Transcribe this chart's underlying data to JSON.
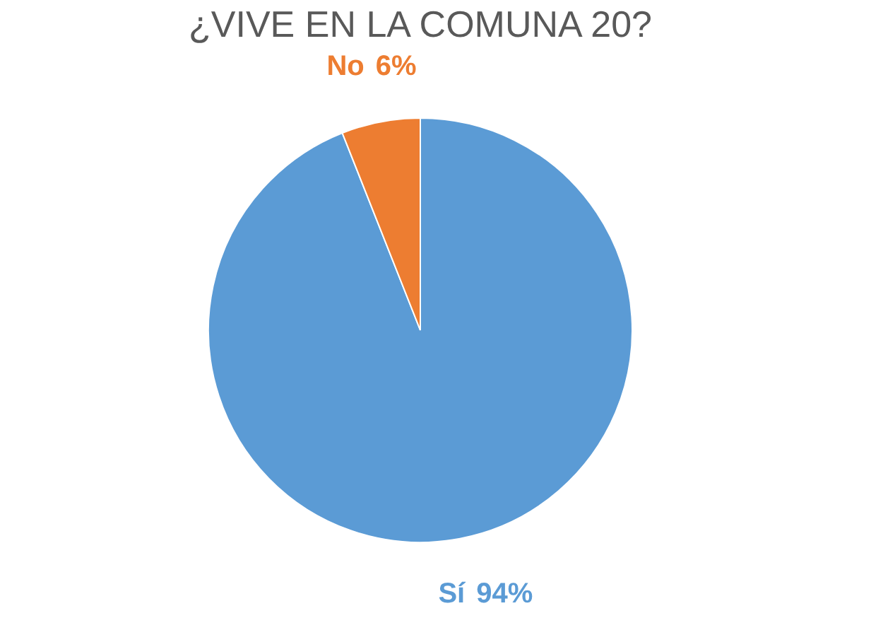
{
  "chart_data": {
    "type": "pie",
    "title": "¿VIVE EN LA COMUNA 20?",
    "categories": [
      "Sí",
      "No"
    ],
    "values": [
      94,
      6
    ],
    "colors": [
      "#5b9bd5",
      "#ed7d31"
    ],
    "value_labels": [
      "94%",
      "6%"
    ],
    "legend": false
  }
}
